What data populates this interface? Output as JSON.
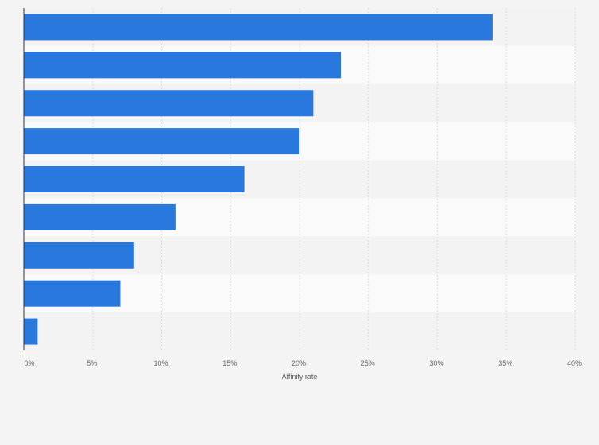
{
  "chart_data": {
    "type": "bar",
    "orientation": "horizontal",
    "title": "",
    "xlabel": "Affinity rate",
    "ylabel": "",
    "categories": [
      "",
      "",
      "",
      "",
      "",
      "",
      "",
      "",
      ""
    ],
    "values": [
      34,
      23,
      21,
      20,
      16,
      11,
      8,
      7,
      1
    ],
    "xlim": [
      0,
      40
    ],
    "x_ticks": [
      0,
      5,
      10,
      15,
      20,
      25,
      30,
      35,
      40
    ],
    "x_tick_labels": [
      "0%",
      "5%",
      "10%",
      "15%",
      "20%",
      "25%",
      "30%",
      "35%",
      "40%"
    ],
    "grid": true,
    "bar_color": "#2878de",
    "band_colors": [
      "#f3f3f3",
      "#fafafa"
    ]
  }
}
